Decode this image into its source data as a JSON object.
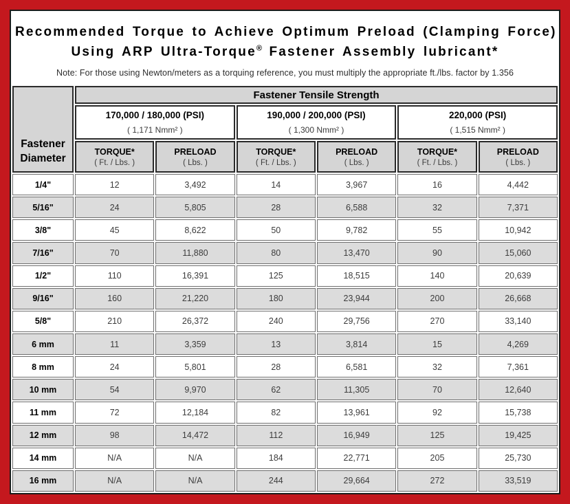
{
  "colors": {
    "frame_red": "#c4181e",
    "header_gray": "#d5d5d5",
    "row_alt_gray": "#dcdcdc",
    "border_dark": "#2a2a2a"
  },
  "title": {
    "line1": "Recommended Torque to Achieve Optimum Preload (Clamping Force)",
    "line2_prefix": "Using ARP Ultra-Torque",
    "line2_reg_mark": "®",
    "line2_suffix": " Fastener Assembly lubricant*",
    "note": "Note: For those using Newton/meters as a torquing reference, you must multiply the appropriate ft./lbs. factor by 1.356"
  },
  "table": {
    "tensile_header": "Fastener Tensile Strength",
    "diameter_header_line1": "Fastener",
    "diameter_header_line2": "Diameter",
    "groups": [
      {
        "psi": "170,000 / 180,000 (PSI)",
        "nmm": "( 1,171 Nmm² )"
      },
      {
        "psi": "190,000 / 200,000 (PSI)",
        "nmm": "( 1,300 Nmm² )"
      },
      {
        "psi": "220,000 (PSI)",
        "nmm": "( 1,515 Nmm² )"
      }
    ],
    "col_headers": [
      {
        "label": "TORQUE*",
        "unit": "( Ft. / Lbs. )"
      },
      {
        "label": "PRELOAD",
        "unit": "( Lbs. )"
      },
      {
        "label": "TORQUE*",
        "unit": "( Ft. / Lbs. )"
      },
      {
        "label": "PRELOAD",
        "unit": "( Lbs. )"
      },
      {
        "label": "TORQUE*",
        "unit": "( Ft. / Lbs. )"
      },
      {
        "label": "PRELOAD",
        "unit": "( Lbs. )"
      }
    ],
    "rows": [
      {
        "dia": "1/4\"",
        "values": [
          "12",
          "3,492",
          "14",
          "3,967",
          "16",
          "4,442"
        ]
      },
      {
        "dia": "5/16\"",
        "values": [
          "24",
          "5,805",
          "28",
          "6,588",
          "32",
          "7,371"
        ]
      },
      {
        "dia": "3/8\"",
        "values": [
          "45",
          "8,622",
          "50",
          "9,782",
          "55",
          "10,942"
        ]
      },
      {
        "dia": "7/16\"",
        "values": [
          "70",
          "11,880",
          "80",
          "13,470",
          "90",
          "15,060"
        ]
      },
      {
        "dia": "1/2\"",
        "values": [
          "110",
          "16,391",
          "125",
          "18,515",
          "140",
          "20,639"
        ]
      },
      {
        "dia": "9/16\"",
        "values": [
          "160",
          "21,220",
          "180",
          "23,944",
          "200",
          "26,668"
        ]
      },
      {
        "dia": "5/8\"",
        "values": [
          "210",
          "26,372",
          "240",
          "29,756",
          "270",
          "33,140"
        ]
      },
      {
        "dia": "6 mm",
        "values": [
          "11",
          "3,359",
          "13",
          "3,814",
          "15",
          "4,269"
        ]
      },
      {
        "dia": "8 mm",
        "values": [
          "24",
          "5,801",
          "28",
          "6,581",
          "32",
          "7,361"
        ]
      },
      {
        "dia": "10 mm",
        "values": [
          "54",
          "9,970",
          "62",
          "11,305",
          "70",
          "12,640"
        ]
      },
      {
        "dia": "11 mm",
        "values": [
          "72",
          "12,184",
          "82",
          "13,961",
          "92",
          "15,738"
        ]
      },
      {
        "dia": "12 mm",
        "values": [
          "98",
          "14,472",
          "112",
          "16,949",
          "125",
          "19,425"
        ]
      },
      {
        "dia": "14 mm",
        "values": [
          "N/A",
          "N/A",
          "184",
          "22,771",
          "205",
          "25,730"
        ]
      },
      {
        "dia": "16 mm",
        "values": [
          "N/A",
          "N/A",
          "244",
          "29,664",
          "272",
          "33,519"
        ]
      }
    ]
  }
}
